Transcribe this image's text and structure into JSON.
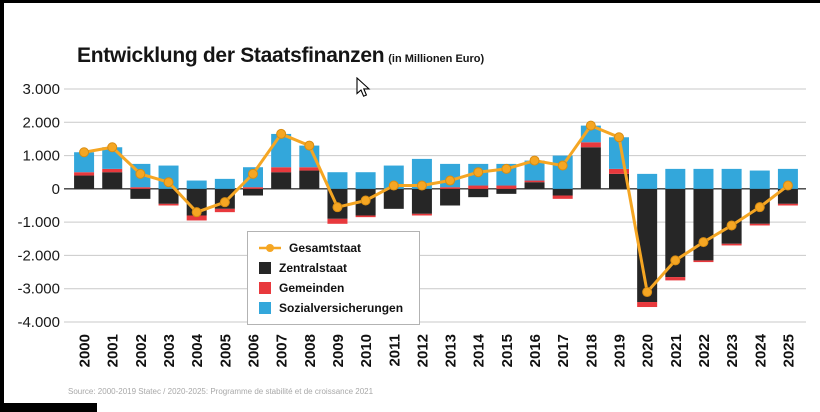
{
  "title": "Entwicklung der Staatsfinanzen",
  "subtitle": "(in Millionen Euro)",
  "source": "Source: 2000-2019 Statec / 2020-2025: Programme de stabilité et de croissance 2021",
  "legend": {
    "items": [
      {
        "label": "Gesamtstaat",
        "color": "#F5A623",
        "marker": "line-dot"
      },
      {
        "label": "Zentralstaat",
        "color": "#262626",
        "marker": "square"
      },
      {
        "label": "Gemeinden",
        "color": "#E8393D",
        "marker": "square"
      },
      {
        "label": "Sozialversicherungen",
        "color": "#33A7DB",
        "marker": "square"
      }
    ]
  },
  "chart_data": {
    "type": "bar",
    "subtype": "stacked-bars-with-total-line",
    "title": "Entwicklung der Staatsfinanzen",
    "unit": "Millionen Euro",
    "grid": "horizontal",
    "legend_position": "inside-bottom-left",
    "categories": [
      "2000",
      "2001",
      "2002",
      "2003",
      "2004",
      "2005",
      "2006",
      "2007",
      "2008",
      "2009",
      "2010",
      "2011",
      "2012",
      "2013",
      "2014",
      "2015",
      "2016",
      "2017",
      "2018",
      "2019",
      "2020",
      "2021",
      "2022",
      "2023",
      "2024",
      "2025"
    ],
    "series": [
      {
        "name": "Zentralstaat",
        "color": "#262626",
        "values": [
          400,
          500,
          -300,
          -450,
          -800,
          -600,
          -200,
          500,
          550,
          -900,
          -800,
          -600,
          -750,
          -500,
          -250,
          -150,
          200,
          -200,
          1250,
          450,
          -3400,
          -2650,
          -2150,
          -1650,
          -1050,
          -450
        ]
      },
      {
        "name": "Gemeinden",
        "color": "#E8393D",
        "values": [
          100,
          100,
          50,
          -50,
          -150,
          -100,
          50,
          150,
          100,
          -150,
          -50,
          0,
          -50,
          50,
          100,
          100,
          50,
          -100,
          150,
          150,
          -150,
          -100,
          -50,
          -50,
          -50,
          -50
        ]
      },
      {
        "name": "Sozialversicherungen",
        "color": "#33A7DB",
        "values": [
          600,
          650,
          700,
          700,
          250,
          300,
          600,
          1000,
          650,
          500,
          500,
          700,
          900,
          700,
          650,
          650,
          600,
          1000,
          500,
          950,
          450,
          600,
          600,
          600,
          550,
          600
        ]
      }
    ],
    "line": {
      "name": "Gesamtstaat",
      "color": "#F5A623",
      "values": [
        1100,
        1250,
        450,
        200,
        -700,
        -400,
        450,
        1650,
        1300,
        -550,
        -350,
        100,
        100,
        250,
        500,
        600,
        850,
        700,
        1900,
        1550,
        -3100,
        -2150,
        -1600,
        -1100,
        -550,
        100
      ]
    },
    "ylim": [
      -4000,
      3000
    ],
    "yticks": [
      {
        "v": 3000,
        "label": "3.000"
      },
      {
        "v": 2000,
        "label": "2.000"
      },
      {
        "v": 1000,
        "label": "1.000"
      },
      {
        "v": 0,
        "label": "0"
      },
      {
        "v": -1000,
        "label": "-1.000"
      },
      {
        "v": -2000,
        "label": "-2.000"
      },
      {
        "v": -3000,
        "label": "-3.000"
      },
      {
        "v": -4000,
        "label": "-4.000"
      }
    ]
  }
}
